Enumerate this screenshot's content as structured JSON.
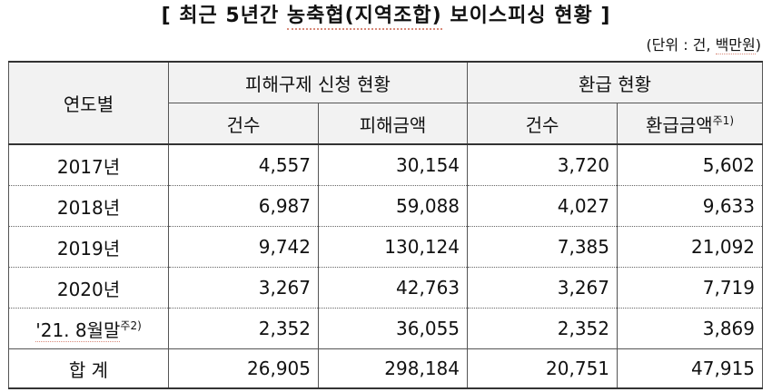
{
  "title": {
    "open": "[ ",
    "pre": "최근 5년간 ",
    "underlined": "농축협(지역조합)",
    "post": " 보이스피싱 현황",
    "close": " ]"
  },
  "unit": {
    "open": "(단위 : 건, ",
    "underlined": "백만원",
    "close": ")"
  },
  "headers": {
    "year": "연도별",
    "group_relief": "피해구제 신청 현황",
    "group_refund": "환급 현황",
    "count": "건수",
    "damage_amount": "피해금액",
    "refund_count": "건수",
    "refund_amount": "환급금액",
    "refund_amount_note": "주1)"
  },
  "rows": [
    {
      "year": "2017년",
      "relief_count": "4,557",
      "damage": "30,154",
      "refund_count": "3,720",
      "refund_amount": "5,602"
    },
    {
      "year": "2018년",
      "relief_count": "6,987",
      "damage": "59,088",
      "refund_count": "4,027",
      "refund_amount": "9,633"
    },
    {
      "year": "2019년",
      "relief_count": "9,742",
      "damage": "130,124",
      "refund_count": "7,385",
      "refund_amount": "21,092"
    },
    {
      "year": "2020년",
      "relief_count": "3,267",
      "damage": "42,763",
      "refund_count": "3,267",
      "refund_amount": "7,719"
    },
    {
      "year": "'21. 8월말",
      "year_note": "주2)",
      "relief_count": "2,352",
      "damage": "36,055",
      "refund_count": "2,352",
      "refund_amount": "3,869"
    }
  ],
  "total": {
    "label": "합 계",
    "relief_count": "26,905",
    "damage": "298,184",
    "refund_count": "20,751",
    "refund_amount": "47,915"
  }
}
